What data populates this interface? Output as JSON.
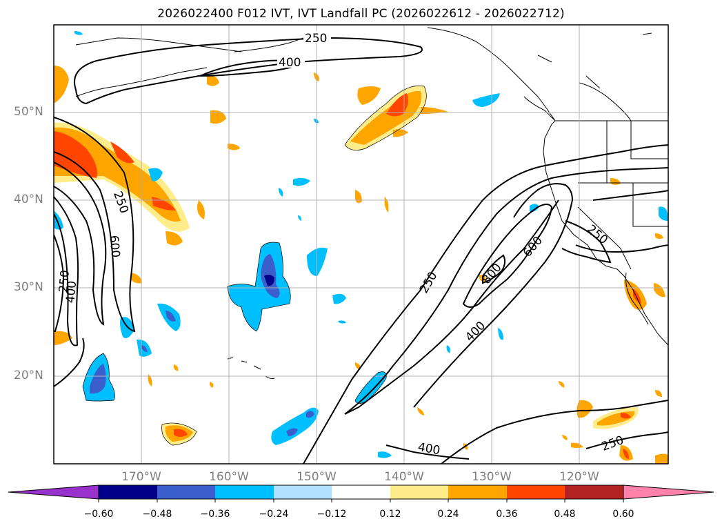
{
  "title": "2026022400 F012 IVT, IVT Landfall PC (2026022612 - 2026022712)",
  "lat_labels": [
    "50°N",
    "40°N",
    "30°N",
    "20°N"
  ],
  "lon_labels": [
    "170°W",
    "160°W",
    "150°W",
    "140°W",
    "130°W",
    "120°W"
  ],
  "contour_labels": [
    "250",
    "400",
    "250",
    "600",
    "250",
    "400",
    "250",
    "600",
    "800",
    "400",
    "250",
    "400",
    "250"
  ],
  "colorbar": {
    "ticks": [
      "−0.60",
      "−0.48",
      "−0.36",
      "−0.24",
      "−0.12",
      "0.12",
      "0.24",
      "0.36",
      "0.48",
      "0.60"
    ],
    "colors": [
      "#9932cc",
      "#00008b",
      "#3a5fcd",
      "#00bfff",
      "#b0e2ff",
      "#ffffff",
      "#ffec8b",
      "#ffa500",
      "#ff4500",
      "#b22222",
      "#ff82ab"
    ]
  }
}
